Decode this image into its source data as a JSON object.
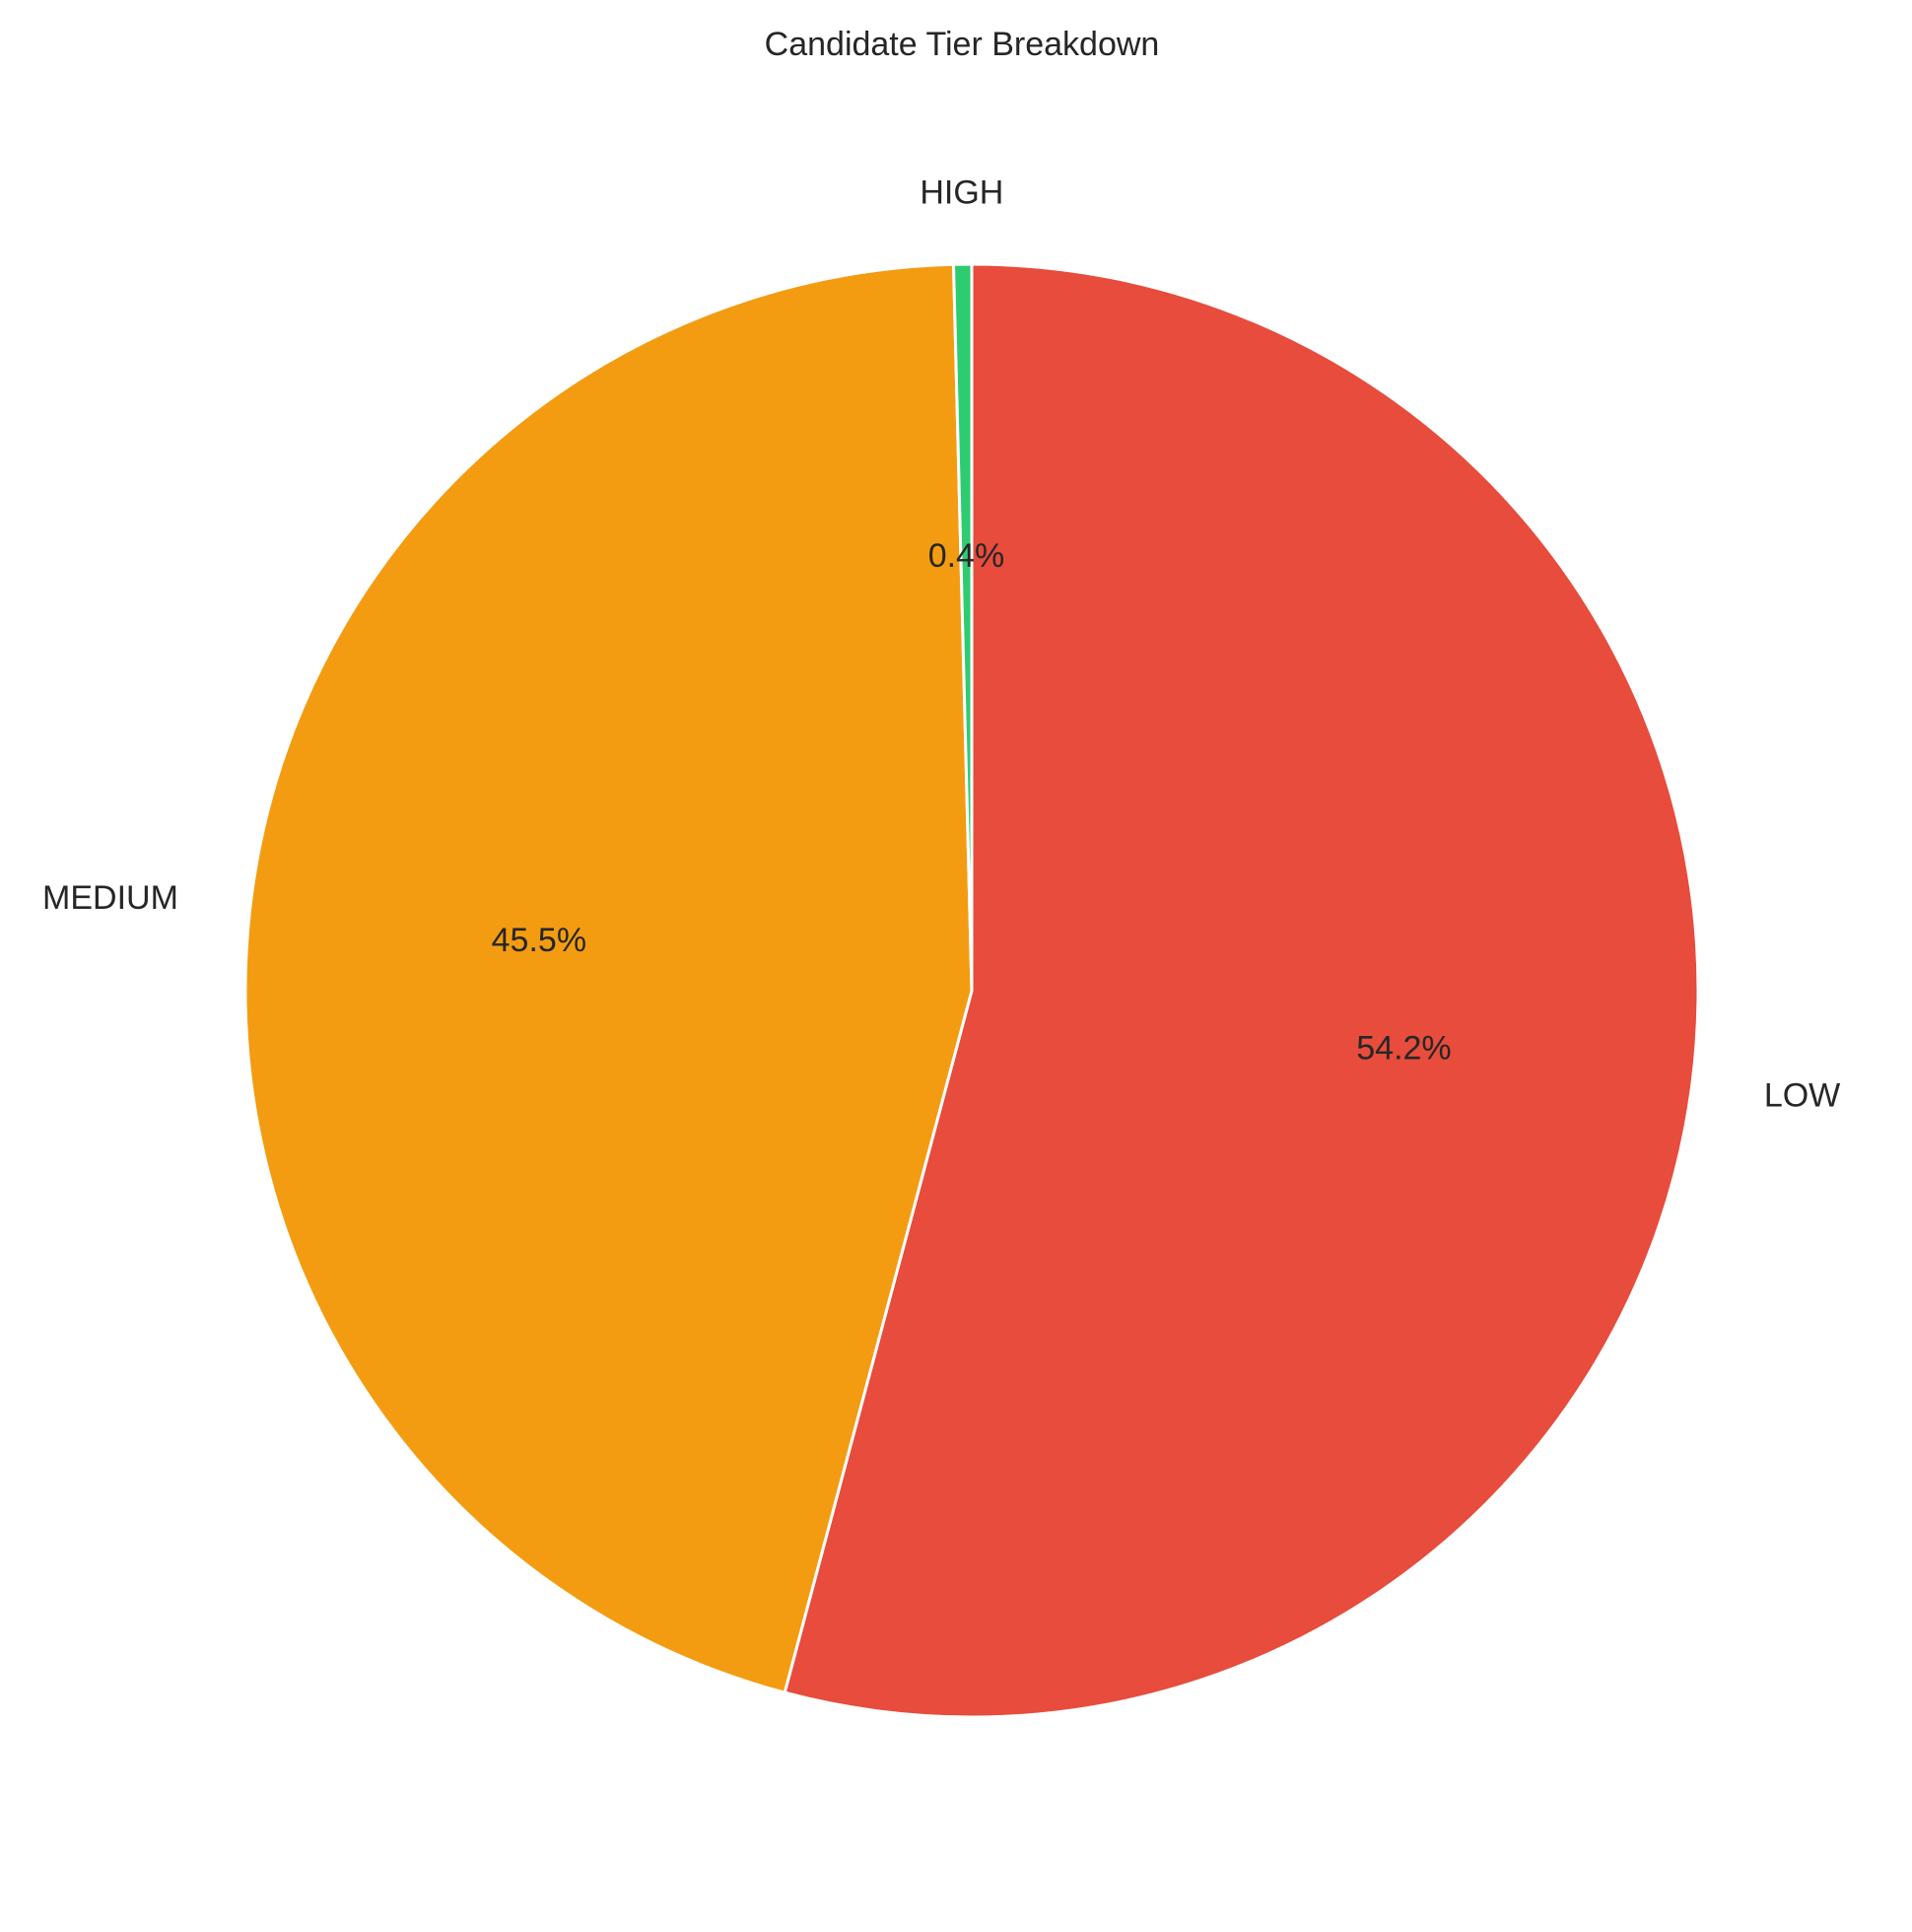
{
  "chart_data": {
    "type": "pie",
    "title": "Candidate Tier Breakdown",
    "categories": [
      "LOW",
      "MEDIUM",
      "HIGH"
    ],
    "values": [
      54.2,
      45.5,
      0.4
    ],
    "pct_labels": [
      "54.2%",
      "45.5%",
      "0.4%"
    ],
    "colors": [
      "#e74c3c",
      "#f39c12",
      "#2ecc71"
    ],
    "start_angle_deg": 90,
    "direction": "clockwise"
  }
}
